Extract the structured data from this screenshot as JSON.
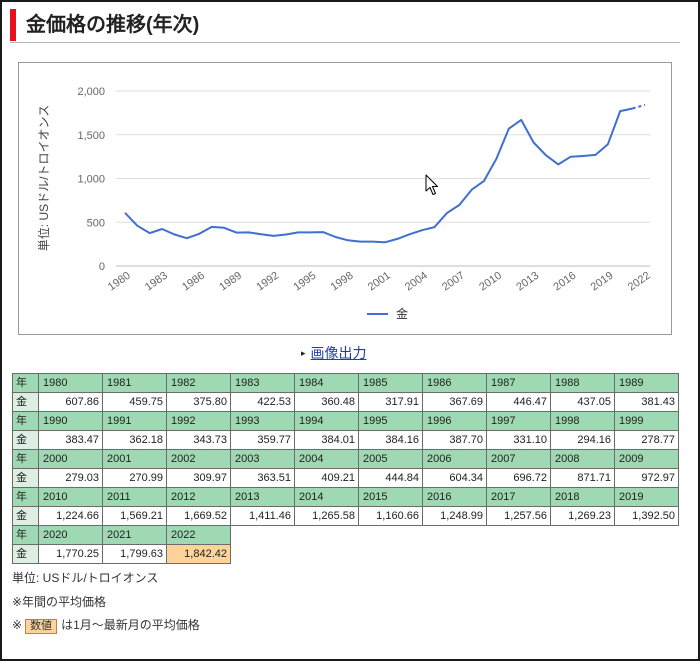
{
  "page": {
    "title": "金価格の推移(年次)"
  },
  "colors": {
    "accent": "#e8101e",
    "line": "#3f6fd0",
    "header_bg": "#9fd9b3",
    "label_bg": "#dcefe2",
    "partial_bg": "#fdd39a",
    "link": "#1f3fa6"
  },
  "chart_data": {
    "type": "line",
    "ylabel": "単位: USドル/トロイオンス",
    "x": [
      1980,
      1981,
      1982,
      1983,
      1984,
      1985,
      1986,
      1987,
      1988,
      1989,
      1990,
      1991,
      1992,
      1993,
      1994,
      1995,
      1996,
      1997,
      1998,
      1999,
      2000,
      2001,
      2002,
      2003,
      2004,
      2005,
      2006,
      2007,
      2008,
      2009,
      2010,
      2011,
      2012,
      2013,
      2014,
      2015,
      2016,
      2017,
      2018,
      2019,
      2020,
      2021,
      2022
    ],
    "series": [
      {
        "name": "金",
        "values": [
          607.86,
          459.75,
          375.8,
          422.53,
          360.48,
          317.91,
          367.69,
          446.47,
          437.05,
          381.43,
          383.47,
          362.18,
          343.73,
          359.77,
          384.01,
          384.16,
          387.7,
          331.1,
          294.16,
          278.77,
          279.03,
          270.99,
          309.97,
          363.51,
          409.21,
          444.84,
          604.34,
          696.72,
          871.71,
          972.97,
          1224.66,
          1569.21,
          1669.52,
          1411.46,
          1265.58,
          1160.66,
          1248.99,
          1257.56,
          1269.23,
          1392.5,
          1770.25,
          1799.63,
          1842.42
        ]
      }
    ],
    "ylim": [
      0,
      2000
    ],
    "yticks": [
      0,
      500,
      1000,
      1500,
      2000
    ],
    "ytick_labels": [
      "0",
      "500",
      "1,000",
      "1,500",
      "2,000"
    ],
    "xticks": [
      1980,
      1983,
      1986,
      1989,
      1992,
      1995,
      1998,
      2001,
      2004,
      2007,
      2010,
      2013,
      2016,
      2019,
      2022
    ],
    "xtick_labels": [
      "1980",
      "1983",
      "1986",
      "1989",
      "1992",
      "1995",
      "1998",
      "2001",
      "2004",
      "2007",
      "2010",
      "2013",
      "2016",
      "2019",
      "2022"
    ],
    "grid": true,
    "legend": "bottom-center"
  },
  "export": {
    "label": "画像出力"
  },
  "table": {
    "year_label": "年",
    "gold_label": "金",
    "blocks": [
      {
        "cells": [
          {
            "year": "1980",
            "value": "607.86"
          },
          {
            "year": "1981",
            "value": "459.75"
          },
          {
            "year": "1982",
            "value": "375.80"
          },
          {
            "year": "1983",
            "value": "422.53"
          },
          {
            "year": "1984",
            "value": "360.48"
          },
          {
            "year": "1985",
            "value": "317.91"
          },
          {
            "year": "1986",
            "value": "367.69"
          },
          {
            "year": "1987",
            "value": "446.47"
          },
          {
            "year": "1988",
            "value": "437.05"
          },
          {
            "year": "1989",
            "value": "381.43"
          }
        ]
      },
      {
        "cells": [
          {
            "year": "1990",
            "value": "383.47"
          },
          {
            "year": "1991",
            "value": "362.18"
          },
          {
            "year": "1992",
            "value": "343.73"
          },
          {
            "year": "1993",
            "value": "359.77"
          },
          {
            "year": "1994",
            "value": "384.01"
          },
          {
            "year": "1995",
            "value": "384.16"
          },
          {
            "year": "1996",
            "value": "387.70"
          },
          {
            "year": "1997",
            "value": "331.10"
          },
          {
            "year": "1998",
            "value": "294.16"
          },
          {
            "year": "1999",
            "value": "278.77"
          }
        ]
      },
      {
        "cells": [
          {
            "year": "2000",
            "value": "279.03"
          },
          {
            "year": "2001",
            "value": "270.99"
          },
          {
            "year": "2002",
            "value": "309.97"
          },
          {
            "year": "2003",
            "value": "363.51"
          },
          {
            "year": "2004",
            "value": "409.21"
          },
          {
            "year": "2005",
            "value": "444.84"
          },
          {
            "year": "2006",
            "value": "604.34"
          },
          {
            "year": "2007",
            "value": "696.72"
          },
          {
            "year": "2008",
            "value": "871.71"
          },
          {
            "year": "2009",
            "value": "972.97"
          }
        ]
      },
      {
        "cells": [
          {
            "year": "2010",
            "value": "1,224.66"
          },
          {
            "year": "2011",
            "value": "1,569.21"
          },
          {
            "year": "2012",
            "value": "1,669.52"
          },
          {
            "year": "2013",
            "value": "1,411.46"
          },
          {
            "year": "2014",
            "value": "1,265.58"
          },
          {
            "year": "2015",
            "value": "1,160.66"
          },
          {
            "year": "2016",
            "value": "1,248.99"
          },
          {
            "year": "2017",
            "value": "1,257.56"
          },
          {
            "year": "2018",
            "value": "1,269.23"
          },
          {
            "year": "2019",
            "value": "1,392.50"
          }
        ]
      },
      {
        "cells": [
          {
            "year": "2020",
            "value": "1,770.25"
          },
          {
            "year": "2021",
            "value": "1,799.63"
          },
          {
            "year": "2022",
            "value": "1,842.42",
            "partial": true
          }
        ]
      }
    ]
  },
  "notes": {
    "unit": "単位: USドル/トロイオンス",
    "annual": "※年間の平均価格",
    "partial_prefix": "※",
    "partial_badge": "数値",
    "partial_suffix": "は1月～最新月の平均価格"
  }
}
